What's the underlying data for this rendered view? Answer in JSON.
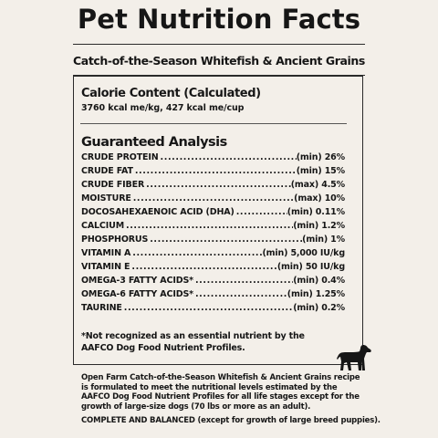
{
  "title": "Pet Nutrition Facts",
  "product_name": "Catch-of-the-Season Whitefish & Ancient Grains",
  "calorie": {
    "heading": "Calorie Content (Calculated)",
    "value": "3760 kcal me/kg, 427 kcal me/cup"
  },
  "guaranteed_analysis": {
    "heading": "Guaranteed Analysis",
    "rows": [
      {
        "name": "CRUDE PROTEIN",
        "value": "(min) 26%"
      },
      {
        "name": "CRUDE FAT",
        "value": "(min) 15%"
      },
      {
        "name": "CRUDE FIBER",
        "value": "(max) 4.5%"
      },
      {
        "name": "MOISTURE",
        "value": "(max) 10%"
      },
      {
        "name": "DOCOSAHEXAENOIC ACID (DHA)",
        "value": "(min) 0.11%"
      },
      {
        "name": "CALCIUM",
        "value": "(min) 1.2%"
      },
      {
        "name": "PHOSPHORUS",
        "value": "(min) 1%"
      },
      {
        "name": "VITAMIN A",
        "value": "(min) 5,000 IU/kg"
      },
      {
        "name": "VITAMIN E",
        "value": "(min) 50 IU/kg"
      },
      {
        "name": "OMEGA-3 FATTY ACIDS*",
        "value": "(min) 0.4%"
      },
      {
        "name": "OMEGA-6 FATTY ACIDS*",
        "value": "(min) 1.25%"
      },
      {
        "name": "TAURINE",
        "value": "(min) 0.2%"
      }
    ]
  },
  "footnote": "*Not recognized as an essential nutrient by the AAFCO Dog Food Nutrient Profiles.",
  "dog_icon": "dog-silhouette-icon",
  "aafco_statement": "Open Farm Catch-of-the-Season Whitefish & Ancient Grains recipe is formulated to meet the nutritional levels estimated by the AAFCO Dog Food Nutrient Profiles for all life stages except for the growth of large-size dogs (70 lbs or more as an adult).",
  "complete_balanced": "COMPLETE AND BALANCED (except for growth of large breed puppies).",
  "colors": {
    "background": "#f3efe9",
    "text": "#161616"
  }
}
